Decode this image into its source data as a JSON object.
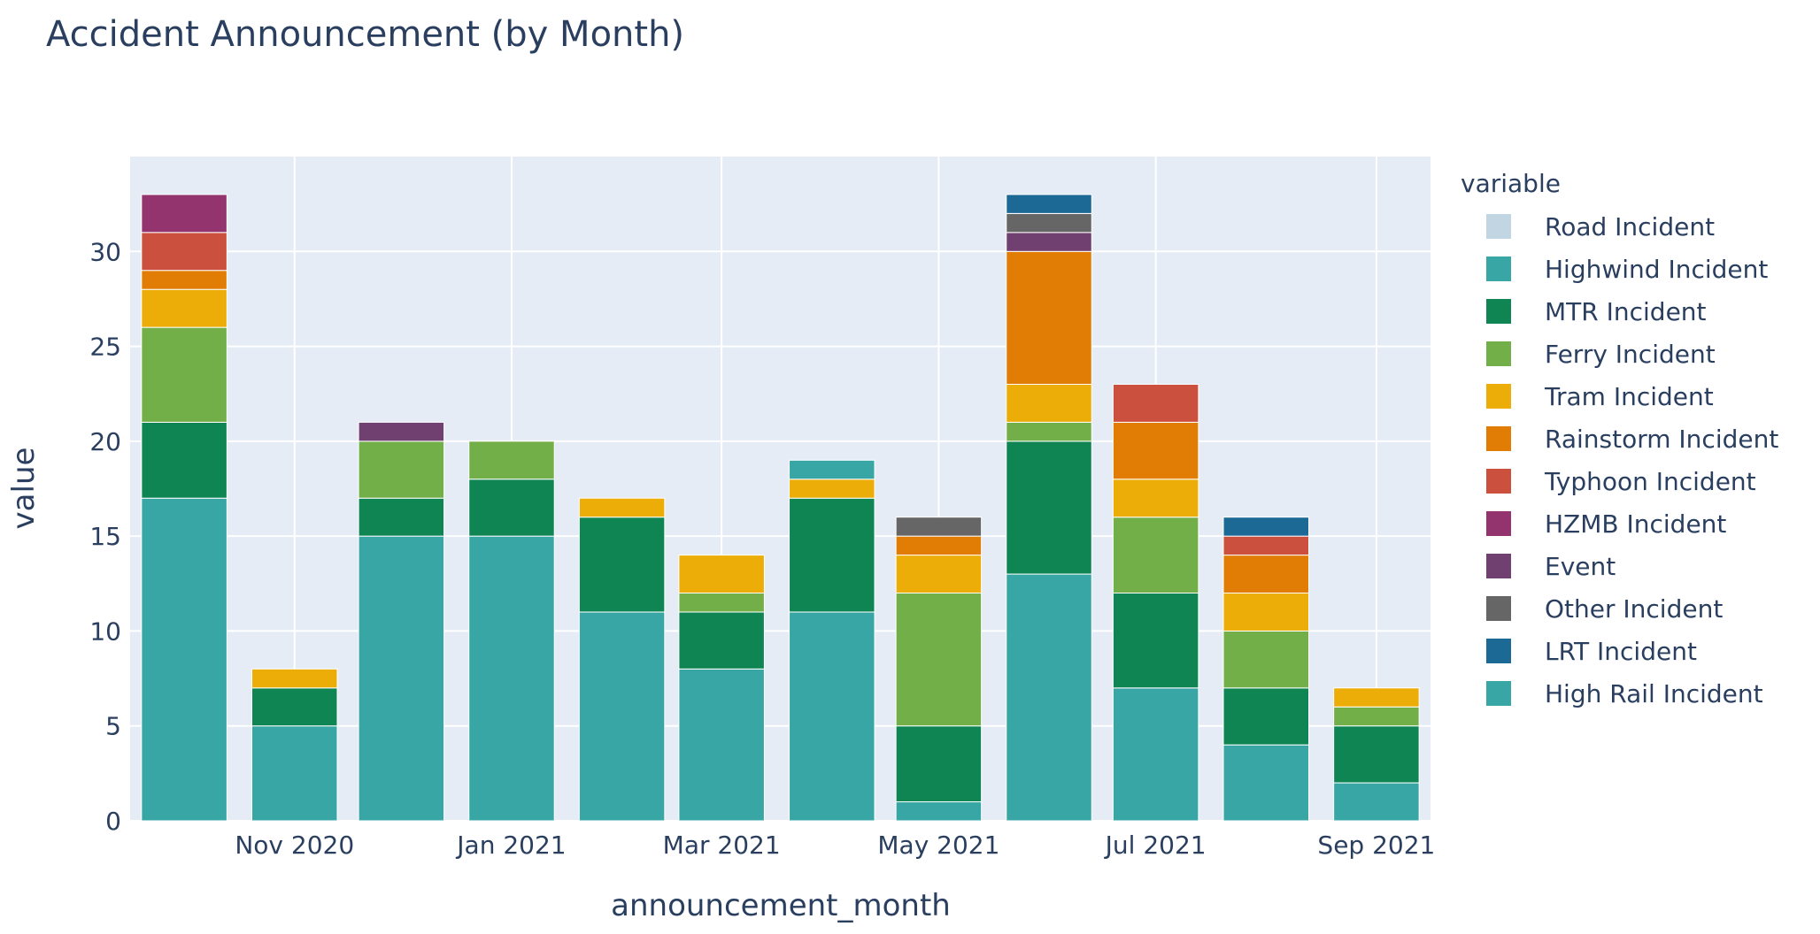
{
  "chart_data": {
    "type": "bar",
    "barmode": "stack",
    "title": "Accident Announcement (by Month)",
    "xlabel": "announcement_month",
    "ylabel": "value",
    "ylim": [
      0,
      35
    ],
    "y_ticks": [
      0,
      5,
      10,
      15,
      20,
      25,
      30
    ],
    "x_tick_labels": [
      "Nov 2020",
      "Jan 2021",
      "Mar 2021",
      "May 2021",
      "Jul 2021",
      "Sep 2021"
    ],
    "x_tick_months": [
      "2020-11",
      "2021-01",
      "2021-03",
      "2021-05",
      "2021-07",
      "2021-09"
    ],
    "categories": [
      "2020-10",
      "2020-11",
      "2020-12",
      "2021-01",
      "2021-02",
      "2021-03",
      "2021-04",
      "2021-05",
      "2021-06",
      "2021-07",
      "2021-08",
      "2021-09"
    ],
    "grid": true,
    "plot_background": "#e5ecf6",
    "legend_title": "variable",
    "legend_position": "right",
    "series": [
      {
        "name": "Road Incident",
        "color": "#8fb3cc",
        "legend_muted": true,
        "values": [
          0,
          0,
          0,
          0,
          0,
          0,
          0,
          0,
          0,
          0,
          0,
          0
        ]
      },
      {
        "name": "Highwind Incident",
        "color": "#38a6a5",
        "values": [
          17,
          5,
          15,
          15,
          11,
          8,
          11,
          1,
          13,
          7,
          4,
          2
        ]
      },
      {
        "name": "MTR Incident",
        "color": "#0f8554",
        "values": [
          4,
          2,
          2,
          3,
          5,
          3,
          6,
          4,
          7,
          5,
          3,
          3
        ]
      },
      {
        "name": "Ferry Incident",
        "color": "#73af48",
        "values": [
          5,
          0,
          3,
          2,
          0,
          1,
          0,
          7,
          1,
          4,
          3,
          1
        ]
      },
      {
        "name": "Tram Incident",
        "color": "#edad08",
        "values": [
          2,
          1,
          0,
          0,
          1,
          2,
          1,
          2,
          2,
          2,
          2,
          1
        ]
      },
      {
        "name": "Rainstorm Incident",
        "color": "#e17c05",
        "values": [
          1,
          0,
          0,
          0,
          0,
          0,
          0,
          1,
          7,
          3,
          2,
          0
        ]
      },
      {
        "name": "Typhoon Incident",
        "color": "#cc503e",
        "values": [
          2,
          0,
          0,
          0,
          0,
          0,
          0,
          0,
          0,
          2,
          1,
          0
        ]
      },
      {
        "name": "HZMB Incident",
        "color": "#94346e",
        "values": [
          2,
          0,
          0,
          0,
          0,
          0,
          0,
          0,
          0,
          0,
          0,
          0
        ]
      },
      {
        "name": "Event",
        "color": "#6f4070",
        "values": [
          0,
          0,
          1,
          0,
          0,
          0,
          0,
          0,
          1,
          0,
          0,
          0
        ]
      },
      {
        "name": "Other Incident",
        "color": "#666666",
        "values": [
          0,
          0,
          0,
          0,
          0,
          0,
          0,
          1,
          1,
          0,
          0,
          0
        ]
      },
      {
        "name": "LRT Incident",
        "color": "#1d6996",
        "values": [
          0,
          0,
          0,
          0,
          0,
          0,
          0,
          0,
          1,
          0,
          1,
          0
        ]
      },
      {
        "name": "High Rail Incident",
        "color": "#38a6a5",
        "values": [
          0,
          0,
          0,
          0,
          0,
          0,
          1,
          0,
          0,
          0,
          0,
          0
        ]
      }
    ]
  }
}
